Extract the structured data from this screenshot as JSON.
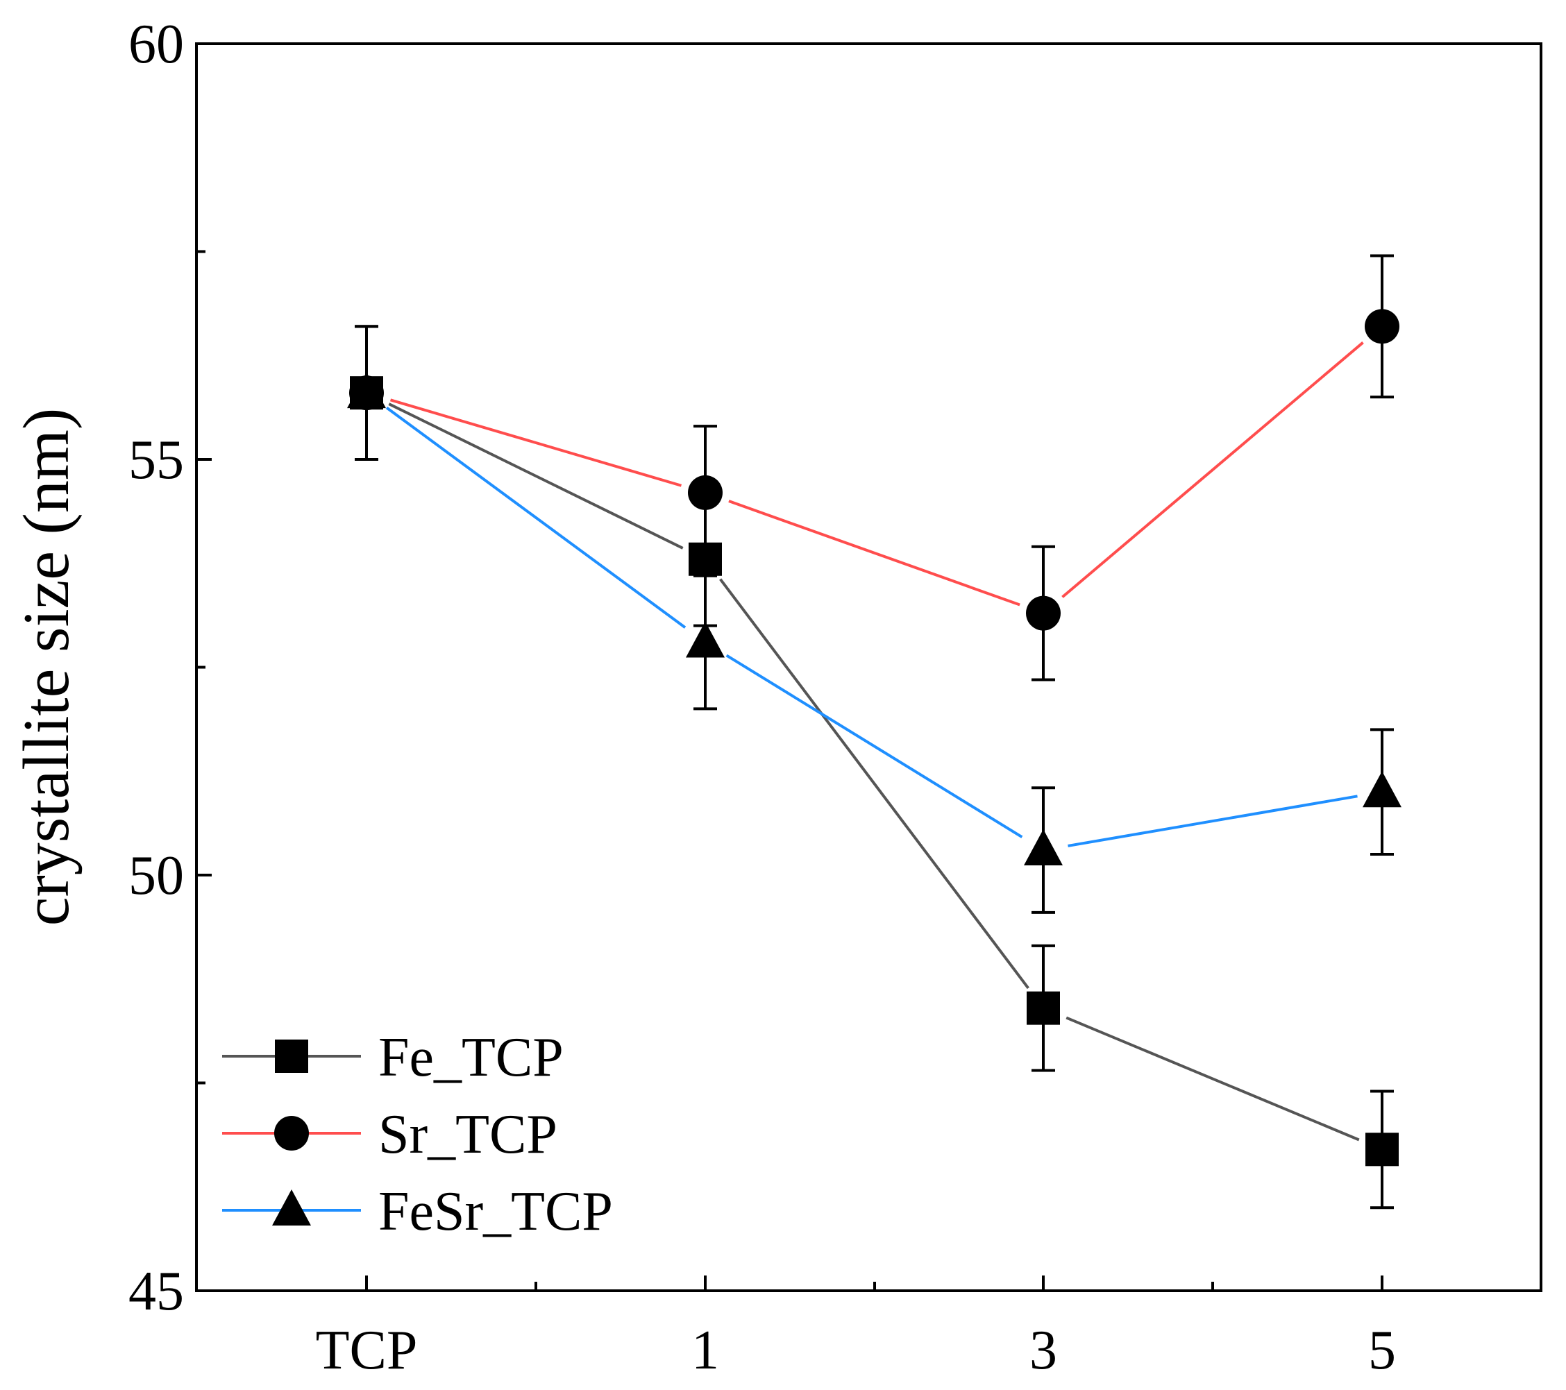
{
  "chart_data": {
    "type": "line",
    "title": "",
    "xlabel": "",
    "ylabel": "crystallite size (nm)",
    "categories": [
      "TCP",
      "1",
      "3",
      "5"
    ],
    "ylim": [
      45,
      60
    ],
    "yticks": [
      45,
      50,
      55,
      60
    ],
    "yminor": [
      47.5,
      52.5,
      57.5
    ],
    "grid": false,
    "legend_position": "bottom-left",
    "series": [
      {
        "name": "Fe_TCP",
        "color": "#555555",
        "marker": "square",
        "values": [
          55.8,
          53.8,
          48.4,
          46.7
        ],
        "errors": [
          0.8,
          0.8,
          0.75,
          0.7
        ]
      },
      {
        "name": "Sr_TCP",
        "color": "#ff4d4d",
        "marker": "circle",
        "values": [
          55.8,
          54.6,
          53.15,
          56.6
        ],
        "errors": [
          0.8,
          0.8,
          0.8,
          0.85
        ]
      },
      {
        "name": "FeSr_TCP",
        "color": "#1f8fff",
        "marker": "triangle",
        "values": [
          55.8,
          52.8,
          50.3,
          51.0
        ],
        "errors": [
          0.8,
          0.8,
          0.75,
          0.75
        ]
      }
    ]
  }
}
